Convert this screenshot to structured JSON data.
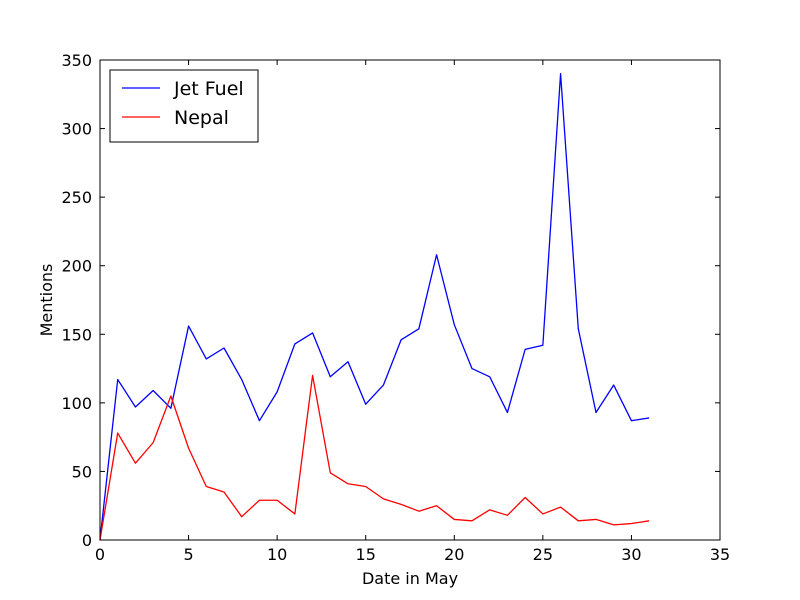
{
  "chart_data": {
    "type": "line",
    "title": "",
    "xlabel": "Date in May",
    "ylabel": "Mentions",
    "xlim": [
      0,
      35
    ],
    "ylim": [
      0,
      350
    ],
    "xticks": [
      0,
      5,
      10,
      15,
      20,
      25,
      30,
      35
    ],
    "yticks": [
      0,
      50,
      100,
      150,
      200,
      250,
      300,
      350
    ],
    "grid": false,
    "legend_position": "top-left",
    "x": [
      0,
      1,
      2,
      3,
      4,
      5,
      6,
      7,
      8,
      9,
      10,
      11,
      12,
      13,
      14,
      15,
      16,
      17,
      18,
      19,
      20,
      21,
      22,
      23,
      24,
      25,
      26,
      27,
      28,
      29,
      30,
      31
    ],
    "series": [
      {
        "name": "Jet Fuel",
        "color": "#0000ff",
        "values": [
          0,
          117,
          97,
          109,
          96,
          156,
          132,
          140,
          117,
          87,
          108,
          143,
          151,
          119,
          130,
          99,
          113,
          146,
          154,
          208,
          157,
          125,
          119,
          93,
          139,
          142,
          340,
          154,
          93,
          113,
          87,
          89
        ]
      },
      {
        "name": "Nepal",
        "color": "#ff0000",
        "values": [
          0,
          78,
          56,
          71,
          105,
          67,
          39,
          35,
          17,
          29,
          29,
          19,
          120,
          49,
          41,
          39,
          30,
          26,
          21,
          25,
          15,
          14,
          22,
          18,
          31,
          19,
          24,
          14,
          15,
          11,
          12,
          14
        ]
      }
    ]
  }
}
